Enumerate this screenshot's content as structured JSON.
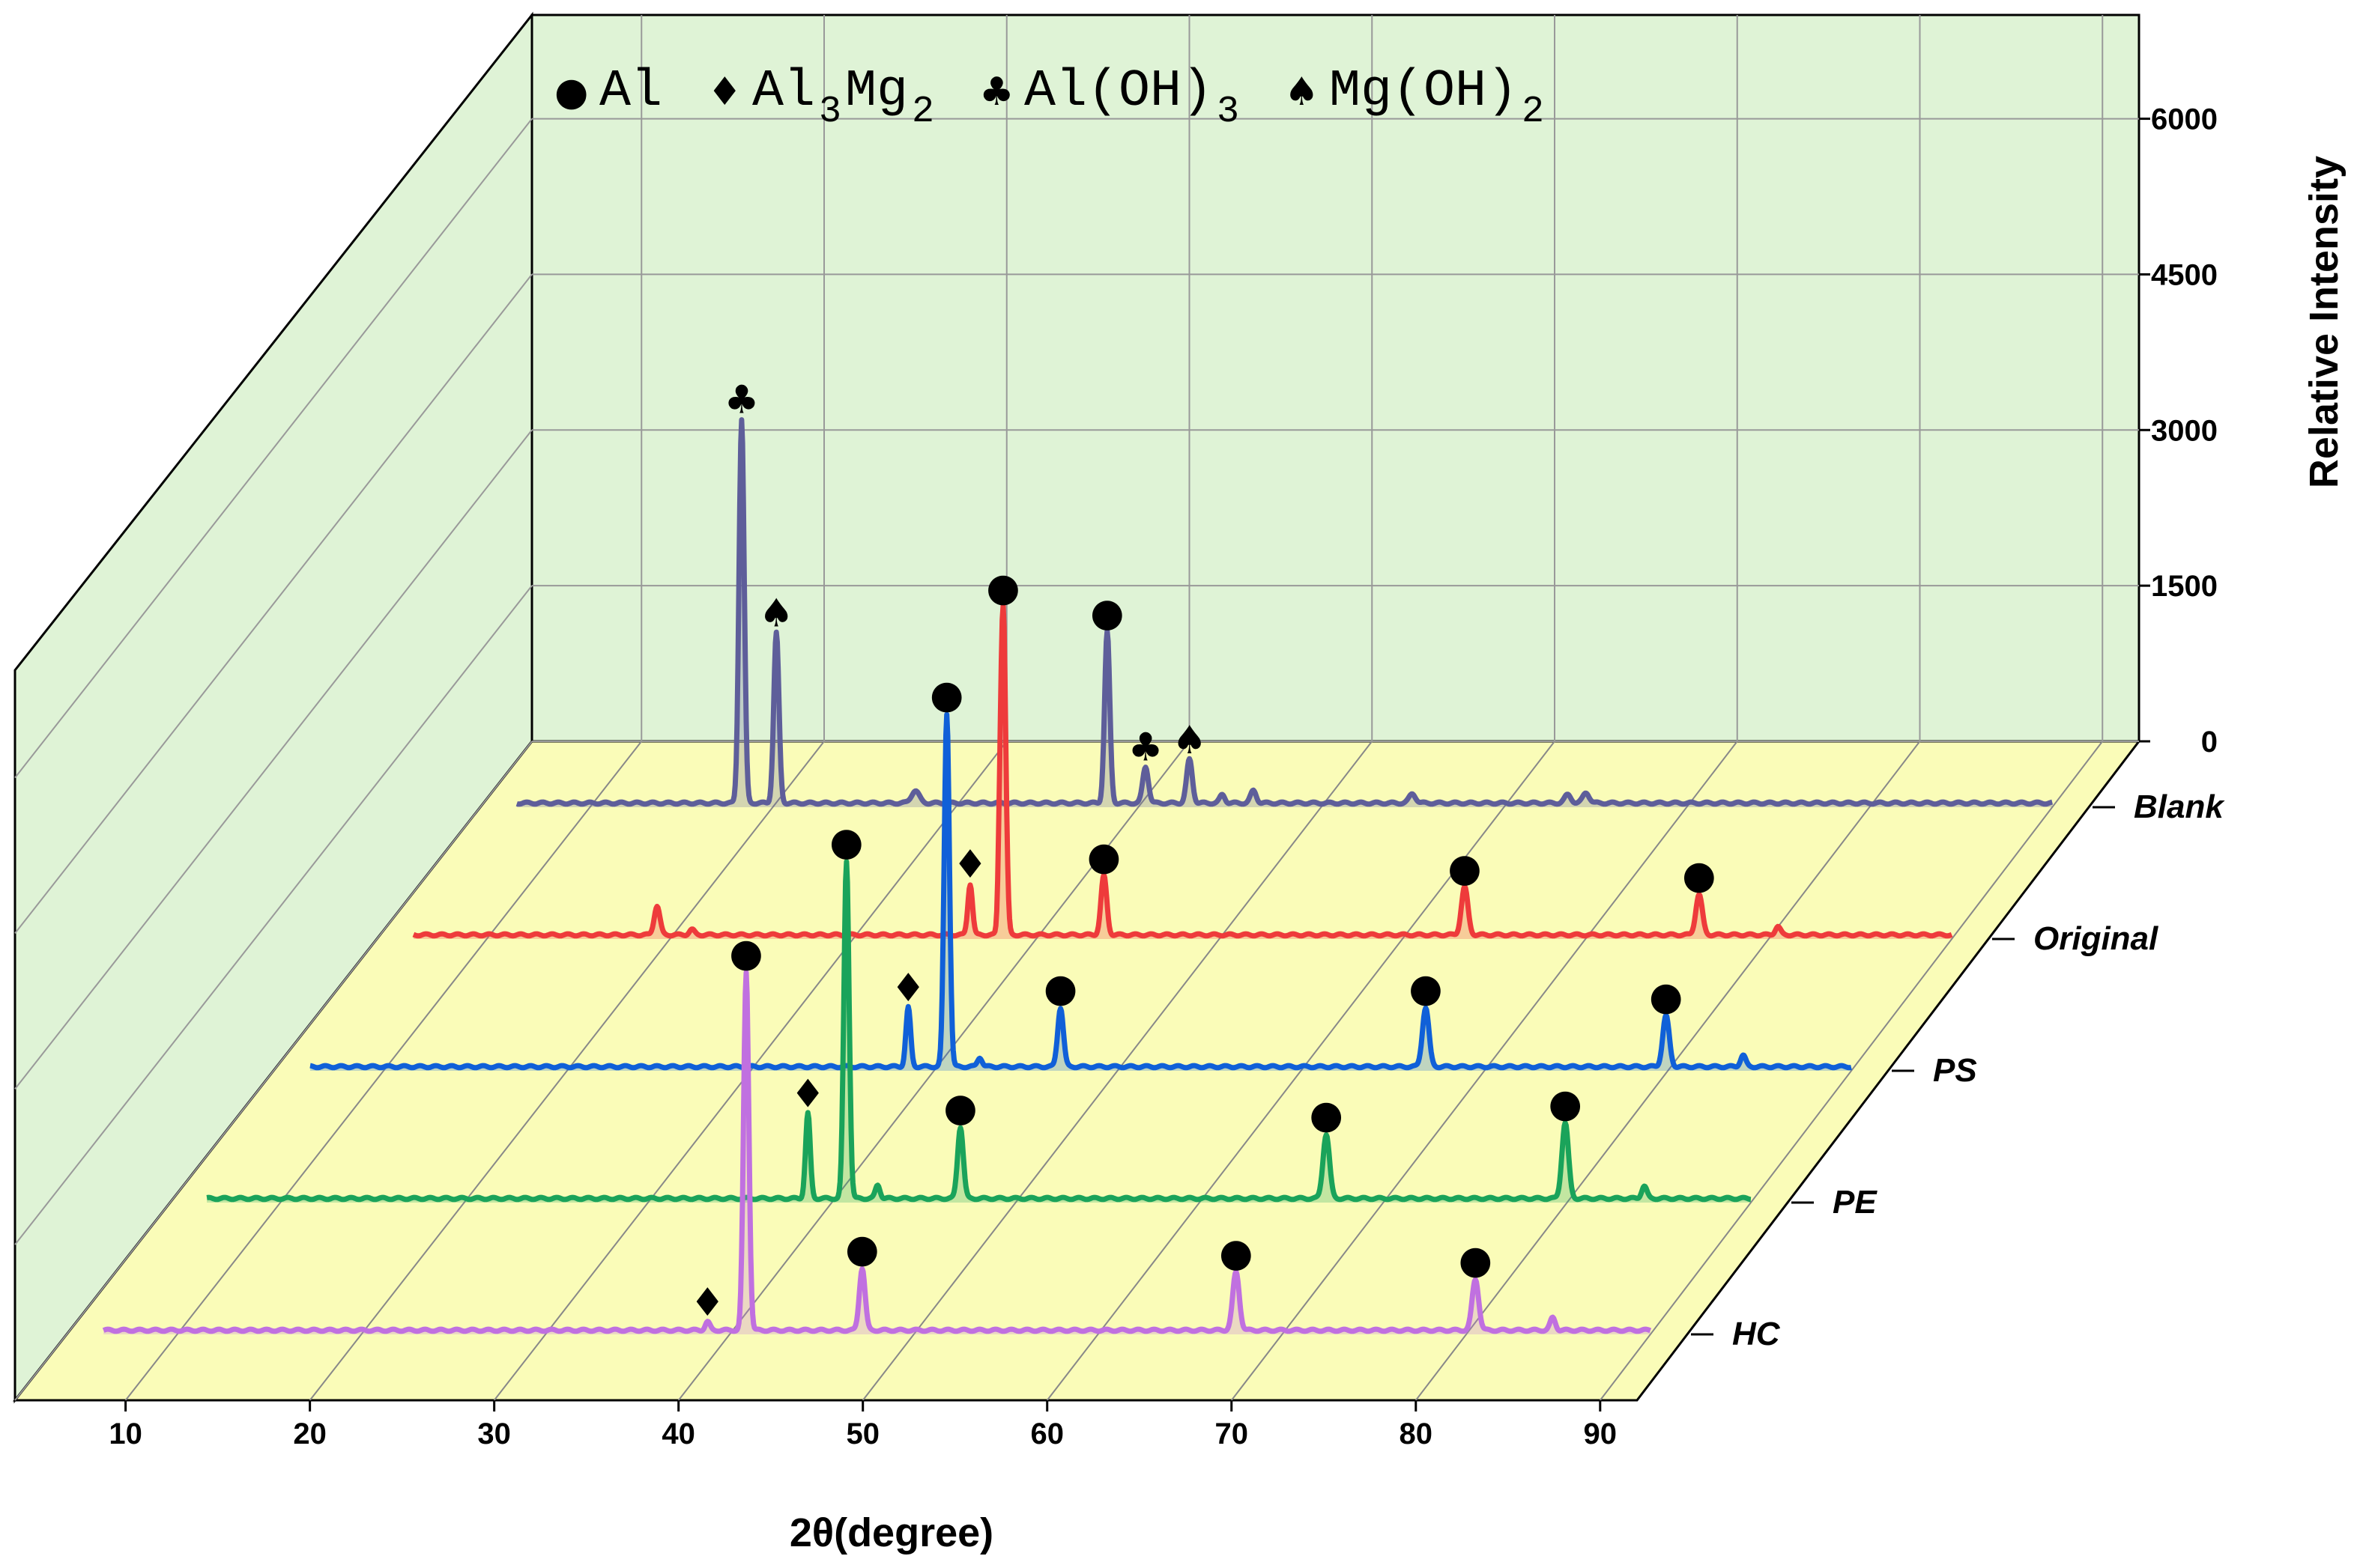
{
  "chart_data": {
    "type": "line",
    "style": "3d-waterfall",
    "xlabel": "2θ(degree)",
    "ylabel": "Relative Intensity",
    "xlim": [
      4,
      92
    ],
    "ylim": [
      0,
      7000
    ],
    "xticks": [
      "10",
      "20",
      "30",
      "40",
      "50",
      "60",
      "70",
      "80",
      "90"
    ],
    "xtick_values": [
      10,
      20,
      30,
      40,
      50,
      60,
      70,
      80,
      90
    ],
    "zticks": [
      "0",
      "1500",
      "3000",
      "4500",
      "6000"
    ],
    "ztick_values": [
      0,
      1500,
      3000,
      4500,
      6000
    ],
    "legend": [
      {
        "symbol": "●",
        "text": "Al",
        "sub": "",
        "text2": "",
        "sub2": ""
      },
      {
        "symbol": "♦",
        "text": "Al",
        "sub": "3",
        "text2": "Mg",
        "sub2": "2"
      },
      {
        "symbol": "♣",
        "text": "Al(OH)",
        "sub": "3",
        "text2": "",
        "sub2": ""
      },
      {
        "symbol": "♠",
        "text": "Mg(OH)",
        "sub": "2",
        "text2": "",
        "sub2": ""
      }
    ],
    "series": [
      {
        "name": "HC",
        "color": "#c070e0",
        "baseline": 30,
        "xstart": 6,
        "xend": 90,
        "peaks": [
          {
            "x": 38.8,
            "y": 80,
            "w": 0.18
          },
          {
            "x": 40.9,
            "y": 3450,
            "w": 0.2
          },
          {
            "x": 47.2,
            "y": 600,
            "w": 0.22
          },
          {
            "x": 67.5,
            "y": 560,
            "w": 0.25
          },
          {
            "x": 80.5,
            "y": 490,
            "w": 0.25
          },
          {
            "x": 84.7,
            "y": 120,
            "w": 0.2
          }
        ],
        "markers": [
          {
            "x": 38.8,
            "sym": "♦",
            "y": 80
          },
          {
            "x": 40.9,
            "sym": "●",
            "y": 3450
          },
          {
            "x": 47.2,
            "sym": "●",
            "y": 600
          },
          {
            "x": 67.5,
            "sym": "●",
            "y": 560
          },
          {
            "x": 80.5,
            "sym": "●",
            "y": 490
          }
        ]
      },
      {
        "name": "PE",
        "color": "#1aa35a",
        "baseline": 30,
        "xstart": 6,
        "xend": 90,
        "peaks": [
          {
            "x": 38.7,
            "y": 820,
            "w": 0.18
          },
          {
            "x": 40.8,
            "y": 3250,
            "w": 0.2
          },
          {
            "x": 42.5,
            "y": 130,
            "w": 0.18
          },
          {
            "x": 47.0,
            "y": 690,
            "w": 0.22
          },
          {
            "x": 66.9,
            "y": 620,
            "w": 0.25
          },
          {
            "x": 79.9,
            "y": 730,
            "w": 0.25
          },
          {
            "x": 84.2,
            "y": 120,
            "w": 0.2
          }
        ],
        "markers": [
          {
            "x": 38.7,
            "sym": "♦",
            "y": 820
          },
          {
            "x": 40.8,
            "sym": "●",
            "y": 3250
          },
          {
            "x": 47.0,
            "sym": "●",
            "y": 690
          },
          {
            "x": 66.9,
            "sym": "●",
            "y": 620
          },
          {
            "x": 79.9,
            "sym": "●",
            "y": 730
          }
        ]
      },
      {
        "name": "PS",
        "color": "#1060d8",
        "baseline": 30,
        "xstart": 6,
        "xend": 90,
        "peaks": [
          {
            "x": 38.6,
            "y": 570,
            "w": 0.18
          },
          {
            "x": 40.7,
            "y": 3400,
            "w": 0.2
          },
          {
            "x": 42.5,
            "y": 90,
            "w": 0.18
          },
          {
            "x": 46.9,
            "y": 570,
            "w": 0.22
          },
          {
            "x": 66.8,
            "y": 570,
            "w": 0.25
          },
          {
            "x": 79.9,
            "y": 490,
            "w": 0.25
          },
          {
            "x": 84.1,
            "y": 110,
            "w": 0.2
          }
        ],
        "markers": [
          {
            "x": 38.6,
            "sym": "♦",
            "y": 570
          },
          {
            "x": 40.7,
            "sym": "●",
            "y": 3400
          },
          {
            "x": 46.9,
            "sym": "●",
            "y": 570
          },
          {
            "x": 66.8,
            "sym": "●",
            "y": 570
          },
          {
            "x": 79.9,
            "sym": "●",
            "y": 490
          }
        ]
      },
      {
        "name": "Original",
        "color": "#ee3b3b",
        "baseline": 30,
        "xstart": 6,
        "xend": 90,
        "peaks": [
          {
            "x": 19.3,
            "y": 280,
            "w": 0.22
          },
          {
            "x": 21.2,
            "y": 50,
            "w": 0.2
          },
          {
            "x": 36.4,
            "y": 490,
            "w": 0.18
          },
          {
            "x": 38.2,
            "y": 3160,
            "w": 0.2
          },
          {
            "x": 38.0,
            "y": 380,
            "w": 0.12
          },
          {
            "x": 43.7,
            "y": 570,
            "w": 0.22
          },
          {
            "x": 63.4,
            "y": 460,
            "w": 0.25
          },
          {
            "x": 76.2,
            "y": 390,
            "w": 0.25
          },
          {
            "x": 80.5,
            "y": 80,
            "w": 0.2
          }
        ],
        "markers": [
          {
            "x": 36.4,
            "sym": "♦",
            "y": 490
          },
          {
            "x": 38.2,
            "sym": "●",
            "y": 3160
          },
          {
            "x": 43.7,
            "sym": "●",
            "y": 570
          },
          {
            "x": 63.4,
            "sym": "●",
            "y": 460
          },
          {
            "x": 76.2,
            "sym": "●",
            "y": 390
          }
        ]
      },
      {
        "name": "Blank",
        "color": "#5e5e9a",
        "baseline": 30,
        "xstart": 6,
        "xend": 90,
        "peaks": [
          {
            "x": 18.3,
            "y": 3700,
            "w": 0.2
          },
          {
            "x": 20.2,
            "y": 1640,
            "w": 0.2
          },
          {
            "x": 27.8,
            "y": 120,
            "w": 0.3
          },
          {
            "x": 38.3,
            "y": 1650,
            "w": 0.2
          },
          {
            "x": 40.4,
            "y": 350,
            "w": 0.22
          },
          {
            "x": 42.8,
            "y": 420,
            "w": 0.22
          },
          {
            "x": 44.6,
            "y": 80,
            "w": 0.2
          },
          {
            "x": 46.3,
            "y": 120,
            "w": 0.22
          },
          {
            "x": 55.0,
            "y": 90,
            "w": 0.25
          },
          {
            "x": 63.5,
            "y": 80,
            "w": 0.25
          },
          {
            "x": 64.5,
            "y": 100,
            "w": 0.25
          }
        ],
        "markers": [
          {
            "x": 18.3,
            "sym": "♣",
            "y": 3700
          },
          {
            "x": 20.2,
            "sym": "♠",
            "y": 1640
          },
          {
            "x": 38.3,
            "sym": "●",
            "y": 1650
          },
          {
            "x": 40.4,
            "sym": "♣",
            "y": 350
          },
          {
            "x": 42.8,
            "sym": "♠",
            "y": 420
          }
        ]
      }
    ]
  }
}
